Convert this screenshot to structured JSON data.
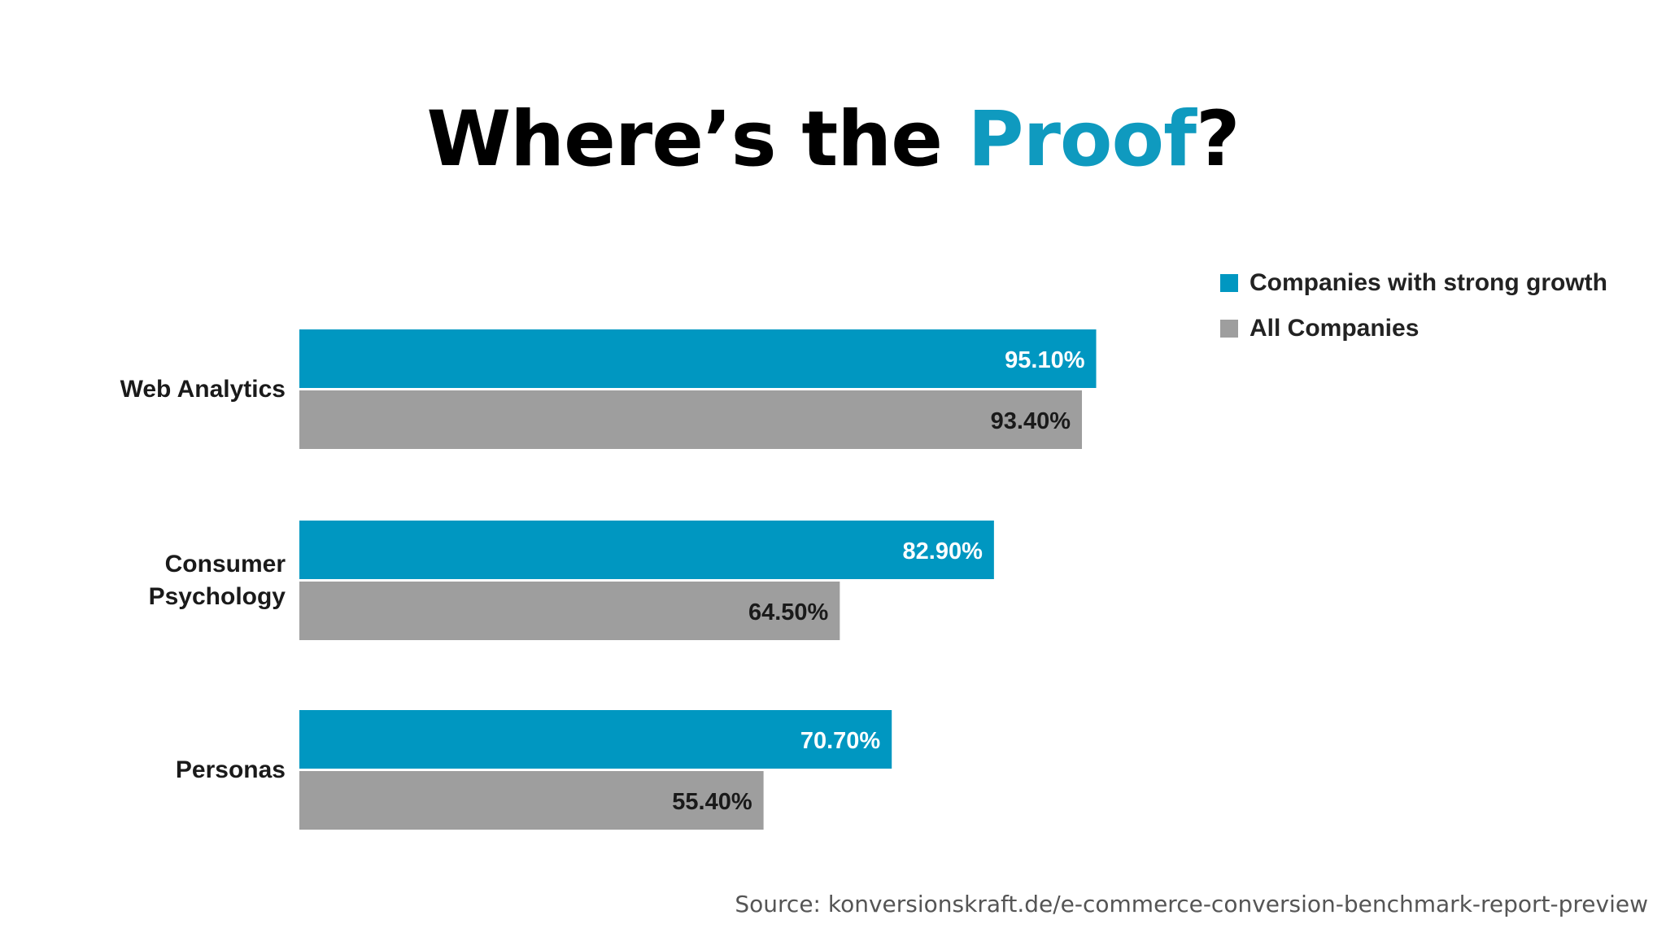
{
  "title": {
    "part1": "Where’s the ",
    "highlight": "Proof",
    "part2": "?",
    "highlight_color": "#0f9abf"
  },
  "chart_data": {
    "type": "bar",
    "orientation": "horizontal",
    "categories": [
      "Web Analytics",
      "Consumer Psychology",
      "Personas"
    ],
    "series": [
      {
        "name": "Companies with strong growth",
        "color": "#0097c1",
        "label_color": "#ffffff",
        "values": [
          95.1,
          82.9,
          70.7
        ],
        "labels": [
          "95.10%",
          "82.90%",
          "70.70%"
        ]
      },
      {
        "name": "All Companies",
        "color": "#9e9e9e",
        "label_color": "#1a1a1a",
        "values": [
          93.4,
          64.5,
          55.4
        ],
        "labels": [
          "93.40%",
          "64.50%",
          "55.40%"
        ]
      }
    ],
    "xlim": [
      0,
      100
    ],
    "grid": false,
    "legend_position": "top-right"
  },
  "source": "Source: konversionskraft.de/e-commerce-conversion-benchmark-report-preview"
}
